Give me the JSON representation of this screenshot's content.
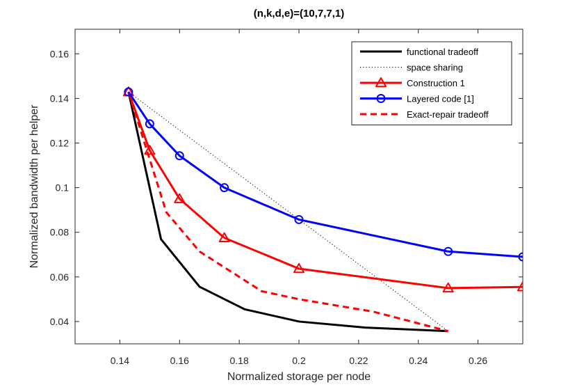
{
  "chart_data": {
    "type": "line",
    "title": "(n,k,d,e)=(10,7,7,1)",
    "xlabel": "Normalized storage per node",
    "ylabel": "Normalized bandwidth per helper",
    "xlim": [
      0.125,
      0.275
    ],
    "ylim": [
      0.03,
      0.171
    ],
    "xticks": [
      0.14,
      0.16,
      0.18,
      0.2,
      0.22,
      0.24,
      0.26
    ],
    "xtick_labels": [
      "0.14",
      "0.16",
      "0.18",
      "0.2",
      "0.22",
      "0.24",
      "0.26"
    ],
    "yticks": [
      0.04,
      0.06,
      0.08,
      0.1,
      0.12,
      0.14,
      0.16
    ],
    "ytick_labels": [
      "0.04",
      "0.06",
      "0.08",
      "0.1",
      "0.12",
      "0.14",
      "0.16"
    ],
    "legend_position": "top-right",
    "series": [
      {
        "name": "functional tradeoff",
        "color": "#000000",
        "style": "solid",
        "marker": "none",
        "x": [
          0.1429,
          0.1538,
          0.1667,
          0.1818,
          0.2,
          0.2222,
          0.25
        ],
        "y": [
          0.1429,
          0.0769,
          0.0556,
          0.0455,
          0.04,
          0.0373,
          0.0357
        ]
      },
      {
        "name": "space sharing",
        "color": "#000000",
        "style": "dotted",
        "marker": "none",
        "x": [
          0.1429,
          0.25
        ],
        "y": [
          0.1429,
          0.0357
        ]
      },
      {
        "name": "Construction 1",
        "color": "#ff0000",
        "style": "solid",
        "marker": "triangle",
        "x": [
          0.1429,
          0.15,
          0.16,
          0.175,
          0.2,
          0.25,
          0.275
        ],
        "y": [
          0.1429,
          0.1167,
          0.095,
          0.0775,
          0.0637,
          0.055,
          0.0555
        ]
      },
      {
        "name": "Layered code [1]",
        "color": "#0000ff",
        "style": "solid",
        "marker": "circle",
        "x": [
          0.1429,
          0.15,
          0.16,
          0.175,
          0.2,
          0.25,
          0.275
        ],
        "y": [
          0.1429,
          0.1286,
          0.1143,
          0.1,
          0.0857,
          0.0714,
          0.069
        ]
      },
      {
        "name": "Exact-repair tradeoff",
        "color": "#ff0000",
        "style": "dashed",
        "marker": "none",
        "x": [
          0.1429,
          0.1556,
          0.1667,
          0.1875,
          0.2,
          0.225,
          0.25
        ],
        "y": [
          0.1429,
          0.0889,
          0.0714,
          0.0536,
          0.05,
          0.0444,
          0.0357
        ]
      }
    ]
  }
}
